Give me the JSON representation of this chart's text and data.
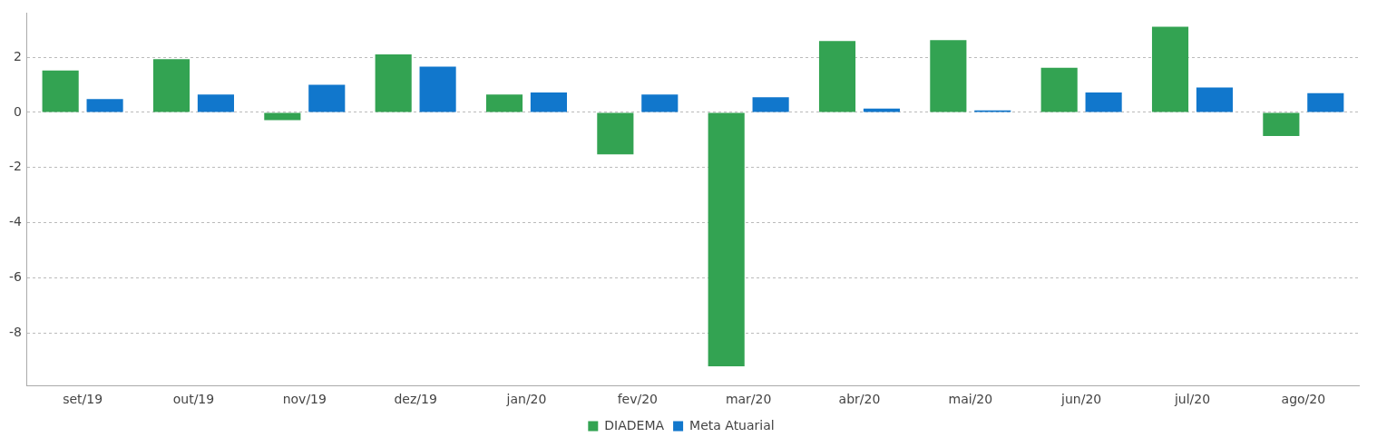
{
  "chart_data": {
    "type": "bar",
    "categories": [
      "set/19",
      "out/19",
      "nov/19",
      "dez/19",
      "jan/20",
      "fev/20",
      "mar/20",
      "abr/20",
      "mai/20",
      "jun/20",
      "jul/20",
      "ago/20"
    ],
    "series": [
      {
        "name": "DIADEMA",
        "color": "#33a352",
        "values": [
          1.52,
          1.93,
          -0.28,
          2.1,
          0.65,
          -1.52,
          -9.2,
          2.59,
          2.62,
          1.62,
          3.1,
          -0.86
        ]
      },
      {
        "name": "Meta Atuarial",
        "color": "#1177cc",
        "values": [
          0.48,
          0.65,
          1.0,
          1.66,
          0.72,
          0.65,
          0.55,
          0.14,
          0.07,
          0.72,
          0.9,
          0.7
        ]
      }
    ],
    "ylim": [
      -9.9,
      3.6
    ],
    "yticks": [
      -8,
      -6,
      -4,
      -2,
      0,
      2
    ],
    "grid": "y",
    "legend": "bottom"
  }
}
